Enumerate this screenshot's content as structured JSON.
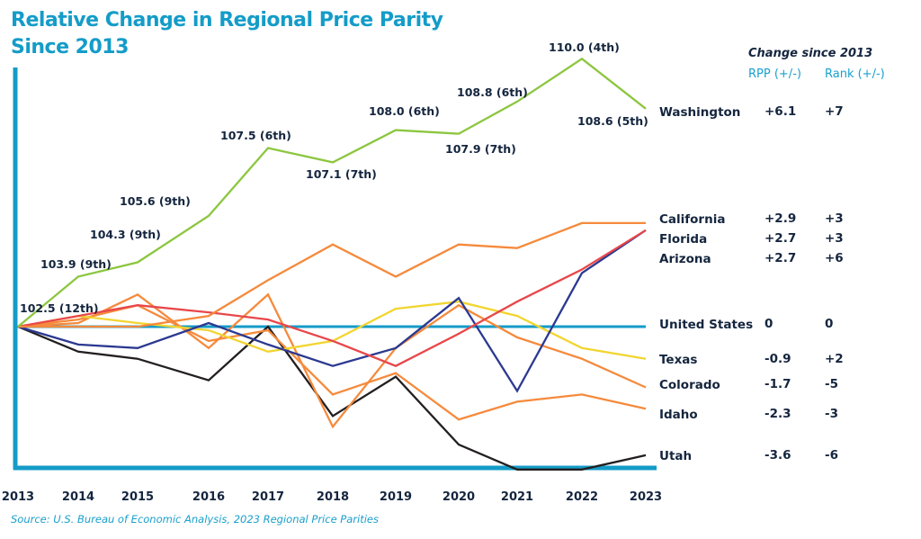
{
  "title_line1": "Relative Change in Regional Price Parity",
  "title_line2": "Since 2013",
  "table_header": {
    "title": "Change since 2013",
    "col1": "RPP (+/-)",
    "col2": "Rank (+/-)"
  },
  "source": "Source: U.S. Bureau of Economic Analysis, 2023 Regional Price Parities",
  "colors": {
    "accent": "#149cc8",
    "text": "#14253e"
  },
  "chart_data": {
    "type": "line",
    "title": "Relative Change in Regional Price Parity Since 2013",
    "xlabel": "",
    "ylabel": "",
    "x": [
      "2013",
      "2014",
      "2015",
      "2016",
      "2017",
      "2018",
      "2019",
      "2020",
      "2021",
      "2022",
      "2023"
    ],
    "ylim": [
      -4.0,
      7.5
    ],
    "grid": false,
    "legend": "right (direct labels)",
    "series": [
      {
        "name": "Washington",
        "color": "#8cc63f",
        "values": [
          0,
          1.4,
          1.8,
          3.1,
          5.0,
          4.6,
          5.5,
          5.4,
          6.3,
          7.5,
          6.1
        ],
        "rpp_change": "+6.1",
        "rank_change": "+7",
        "annotations": [
          "102.5 (12th)",
          "103.9 (9th)",
          "104.3 (9th)",
          "105.6 (9th)",
          "107.5 (6th)",
          "107.1 (7th)",
          "108.0 (6th)",
          "107.9 (7th)",
          "108.8 (6th)",
          "110.0 (4th)",
          "108.6 (5th)"
        ]
      },
      {
        "name": "California",
        "color": "#f58a3c",
        "values": [
          0,
          0,
          0,
          0.3,
          1.3,
          2.3,
          1.4,
          2.3,
          2.2,
          2.9,
          2.9
        ],
        "rpp_change": "+2.9",
        "rank_change": "+3"
      },
      {
        "name": "Florida",
        "color": "#e8474a",
        "values": [
          0,
          0.3,
          0.6,
          0.4,
          0.2,
          -0.4,
          -1.1,
          -0.2,
          0.7,
          1.6,
          2.7
        ],
        "rpp_change": "+2.7",
        "rank_change": "+3"
      },
      {
        "name": "Arizona",
        "color": "#2b3990",
        "values": [
          0,
          -0.5,
          -0.6,
          0.1,
          -0.5,
          -1.1,
          -0.6,
          0.8,
          -1.8,
          1.5,
          2.7
        ],
        "rpp_change": "+2.7",
        "rank_change": "+6"
      },
      {
        "name": "United States",
        "color": "#149cc8",
        "values": [
          0,
          0,
          0,
          0,
          0,
          0,
          0,
          0,
          0,
          0,
          0
        ],
        "rpp_change": "0",
        "rank_change": "0"
      },
      {
        "name": "Texas",
        "color": "#f2d530",
        "values": [
          0,
          0.3,
          0.1,
          -0.1,
          -0.7,
          -0.4,
          0.5,
          0.7,
          0.3,
          -0.6,
          -0.9
        ],
        "rpp_change": "-0.9",
        "rank_change": "+2"
      },
      {
        "name": "Colorado",
        "color": "#f58a3c",
        "values": [
          0,
          0.1,
          0.9,
          -0.6,
          0.9,
          -2.8,
          -0.6,
          0.6,
          -0.3,
          -0.9,
          -1.7
        ],
        "rpp_change": "-1.7",
        "rank_change": "-5"
      },
      {
        "name": "Idaho",
        "color": "#f58a3c",
        "values": [
          0,
          0.2,
          0.6,
          -0.4,
          -0.1,
          -1.9,
          -1.3,
          -2.6,
          -2.1,
          -1.9,
          -2.3
        ],
        "rpp_change": "-2.3",
        "rank_change": "-3"
      },
      {
        "name": "Utah",
        "color": "#231f20",
        "values": [
          0,
          -0.7,
          -0.9,
          -1.5,
          0,
          -2.5,
          -1.4,
          -3.3,
          -4.0,
          -4.0,
          -3.6
        ],
        "rpp_change": "-3.6",
        "rank_change": "-6"
      }
    ]
  }
}
